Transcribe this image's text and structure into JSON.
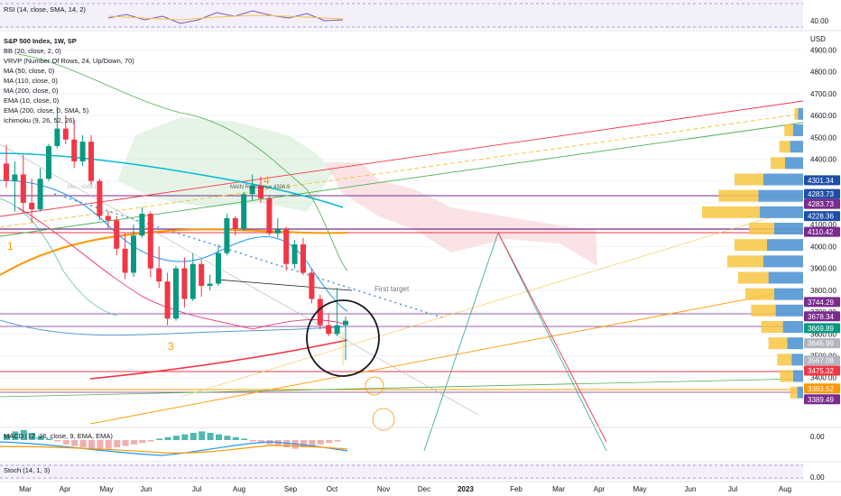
{
  "rsi": {
    "label": "RSI (14, close, SMA, 14, 2)",
    "value_label": "40.00"
  },
  "legend": {
    "title": "S&P 500 Index, 1W, SP",
    "items": [
      "BB (20, close, 2, 0)",
      "VRVP (Number Of Rows, 24, Up/Down, 70)",
      "MA (50, close, 0)",
      "MA (110, close, 0)",
      "MA (200, close, 0)",
      "EMA (10, close, 0)",
      "EMA (200, close, 0, SMA, 5)",
      "Ichimoku (9, 26, 52, 26)"
    ]
  },
  "currency": "USD",
  "macd": {
    "label": "MACD (12, 26, close, 9, EMA, EMA)",
    "value_label": "0.00"
  },
  "stoch": {
    "label": "Stoch (14, 1, 3)",
    "value_label": "0.00"
  },
  "annotations": {
    "first_target": "First target",
    "wave1": "1",
    "wave3": "3",
    "wave4": "4",
    "main_resistance": "MAIN Resistance 4306.5",
    "mid_resistance": "Mu... 4305.8"
  },
  "chart_data": {
    "type": "candlestick",
    "title": "S&P 500 Index, 1W, SP",
    "y_axis": {
      "unit": "USD",
      "ylim": [
        3180,
        4980
      ],
      "ticks": [
        3300,
        3400,
        3500,
        3600,
        3700,
        3800,
        3900,
        4000,
        4100,
        4200,
        4300,
        4400,
        4500,
        4600,
        4700,
        4800,
        4900
      ]
    },
    "x_axis": {
      "ticks": [
        "Mar",
        "Apr",
        "May",
        "Jun",
        "Jul",
        "Aug",
        "Sep",
        "Oct",
        "Nov",
        "Dec",
        "2023",
        "Feb",
        "Mar",
        "Apr",
        "May",
        "Jun",
        "Jul",
        "Aug"
      ]
    },
    "candles": [
      {
        "o": 4380,
        "h": 4465,
        "l": 4270,
        "c": 4300
      },
      {
        "o": 4300,
        "h": 4390,
        "l": 4160,
        "c": 4330
      },
      {
        "o": 4330,
        "h": 4420,
        "l": 4150,
        "c": 4200
      },
      {
        "o": 4200,
        "h": 4310,
        "l": 4110,
        "c": 4170
      },
      {
        "o": 4170,
        "h": 4360,
        "l": 4160,
        "c": 4310
      },
      {
        "o": 4310,
        "h": 4470,
        "l": 4300,
        "c": 4460
      },
      {
        "o": 4460,
        "h": 4640,
        "l": 4450,
        "c": 4540
      },
      {
        "o": 4540,
        "h": 4600,
        "l": 4470,
        "c": 4490
      },
      {
        "o": 4490,
        "h": 4580,
        "l": 4360,
        "c": 4390
      },
      {
        "o": 4390,
        "h": 4510,
        "l": 4370,
        "c": 4480
      },
      {
        "o": 4480,
        "h": 4510,
        "l": 4280,
        "c": 4300
      },
      {
        "o": 4300,
        "h": 4310,
        "l": 4120,
        "c": 4140
      },
      {
        "o": 4140,
        "h": 4160,
        "l": 4080,
        "c": 4120
      },
      {
        "o": 4120,
        "h": 4140,
        "l": 3960,
        "c": 3990
      },
      {
        "o": 3990,
        "h": 4060,
        "l": 3850,
        "c": 3880
      },
      {
        "o": 3880,
        "h": 4100,
        "l": 3860,
        "c": 4050
      },
      {
        "o": 4050,
        "h": 4180,
        "l": 4040,
        "c": 4150
      },
      {
        "o": 4150,
        "h": 4160,
        "l": 3860,
        "c": 3900
      },
      {
        "o": 3900,
        "h": 4000,
        "l": 3810,
        "c": 3840
      },
      {
        "o": 3840,
        "h": 3880,
        "l": 3640,
        "c": 3670
      },
      {
        "o": 3670,
        "h": 3910,
        "l": 3660,
        "c": 3900
      },
      {
        "o": 3900,
        "h": 3950,
        "l": 3720,
        "c": 3760
      },
      {
        "o": 3760,
        "h": 3970,
        "l": 3750,
        "c": 3920
      },
      {
        "o": 3920,
        "h": 3940,
        "l": 3770,
        "c": 3820
      },
      {
        "o": 3820,
        "h": 3870,
        "l": 3800,
        "c": 3830
      },
      {
        "o": 3830,
        "h": 4010,
        "l": 3820,
        "c": 3970
      },
      {
        "o": 3970,
        "h": 4150,
        "l": 3960,
        "c": 4130
      },
      {
        "o": 4130,
        "h": 4140,
        "l": 4050,
        "c": 4080
      },
      {
        "o": 4080,
        "h": 4250,
        "l": 4070,
        "c": 4240
      },
      {
        "o": 4240,
        "h": 4330,
        "l": 4210,
        "c": 4280
      },
      {
        "o": 4280,
        "h": 4320,
        "l": 4200,
        "c": 4220
      },
      {
        "o": 4220,
        "h": 4230,
        "l": 4050,
        "c": 4060
      },
      {
        "o": 4060,
        "h": 4130,
        "l": 4040,
        "c": 4080
      },
      {
        "o": 4080,
        "h": 4090,
        "l": 3890,
        "c": 3920
      },
      {
        "o": 3920,
        "h": 4030,
        "l": 3900,
        "c": 4010
      },
      {
        "o": 4010,
        "h": 4040,
        "l": 3870,
        "c": 3880
      },
      {
        "o": 3880,
        "h": 3900,
        "l": 3740,
        "c": 3760
      },
      {
        "o": 3760,
        "h": 3780,
        "l": 3620,
        "c": 3640
      },
      {
        "o": 3640,
        "h": 3690,
        "l": 3590,
        "c": 3600
      },
      {
        "o": 3600,
        "h": 3810,
        "l": 3590,
        "c": 3640
      },
      {
        "o": 3640,
        "h": 3680,
        "l": 3480,
        "c": 3660
      }
    ],
    "price_tags": [
      {
        "value": 4301.34,
        "label": "4301.34",
        "color": "#1e4fa8"
      },
      {
        "value": 4283.73,
        "label": "4283.73",
        "color": "#1e4fa8"
      },
      {
        "value": 4283.73,
        "label": "4283.73",
        "color": "#7b2a8e"
      },
      {
        "value": 4228.36,
        "label": "4228.36",
        "color": "#1e4fa8"
      },
      {
        "value": 4110.42,
        "label": "4110.42",
        "color": "#7b2a8e"
      },
      {
        "value": 3744.29,
        "label": "3744.29",
        "color": "#7b2a8e"
      },
      {
        "value": 3678.34,
        "label": "3678.34",
        "color": "#7b2a8e"
      },
      {
        "value": 3669.89,
        "label": "3669.89",
        "color": "#089981"
      },
      {
        "value": 3645.99,
        "label": "3645.99",
        "color": "#b2b5be"
      },
      {
        "value": 3567.08,
        "label": "3567.08",
        "color": "#b2b5be"
      },
      {
        "value": 3475.32,
        "label": "3475.32",
        "color": "#f23645"
      },
      {
        "value": 3393.52,
        "label": "3393.52",
        "color": "#ff9800"
      },
      {
        "value": 3389.49,
        "label": "3389.49",
        "color": "#7b2a8e"
      }
    ],
    "volume_profile": [
      {
        "price": 3330,
        "up": 0.1,
        "down": 0.08
      },
      {
        "price": 3405,
        "up": 0.18,
        "down": 0.14
      },
      {
        "price": 3480,
        "up": 0.2,
        "down": 0.16
      },
      {
        "price": 3555,
        "up": 0.26,
        "down": 0.22
      },
      {
        "price": 3630,
        "up": 0.3,
        "down": 0.28
      },
      {
        "price": 3705,
        "up": 0.34,
        "down": 0.38
      },
      {
        "price": 3780,
        "up": 0.4,
        "down": 0.4
      },
      {
        "price": 3855,
        "up": 0.42,
        "down": 0.48
      },
      {
        "price": 3930,
        "up": 0.5,
        "down": 0.55
      },
      {
        "price": 4005,
        "up": 0.45,
        "down": 0.5
      },
      {
        "price": 4080,
        "up": 0.35,
        "down": 0.4
      },
      {
        "price": 4155,
        "up": 0.8,
        "down": 0.6
      },
      {
        "price": 4230,
        "up": 0.55,
        "down": 0.62
      },
      {
        "price": 4305,
        "up": 0.4,
        "down": 0.55
      },
      {
        "price": 4380,
        "up": 0.2,
        "down": 0.25
      },
      {
        "price": 4455,
        "up": 0.15,
        "down": 0.18
      },
      {
        "price": 4530,
        "up": 0.12,
        "down": 0.14
      },
      {
        "price": 4605,
        "up": 0.05,
        "down": 0.07
      }
    ]
  }
}
